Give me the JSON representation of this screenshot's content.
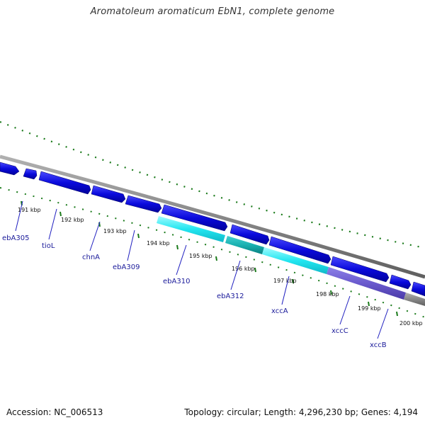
{
  "header": {
    "title": "Aromatoleum aromaticum EbN1, complete genome"
  },
  "footer": {
    "accession": "Accession: NC_006513",
    "summary": "Topology: circular; Length: 4,296,230 bp; Genes: 4,194"
  },
  "colors": {
    "forward_cds": "#0a0adc",
    "reverse_cds": "#22e6f0",
    "reverse_cds_dark": "#1ab0b0",
    "purple_feature": "#6a5acd",
    "backbone": "#808080",
    "gc_skew": "#1a7a1a"
  },
  "tick_labels": [
    "191 kbp",
    "192 kbp",
    "193 kbp",
    "194 kbp",
    "195 kbp",
    "196 kbp",
    "197 kbp",
    "198 kbp",
    "199 kbp",
    "200 kbp"
  ],
  "gene_labels": [
    "ebA305",
    "tioL",
    "chnA",
    "ebA309",
    "ebA310",
    "ebA312",
    "xccA",
    "xccC",
    "xccB"
  ]
}
